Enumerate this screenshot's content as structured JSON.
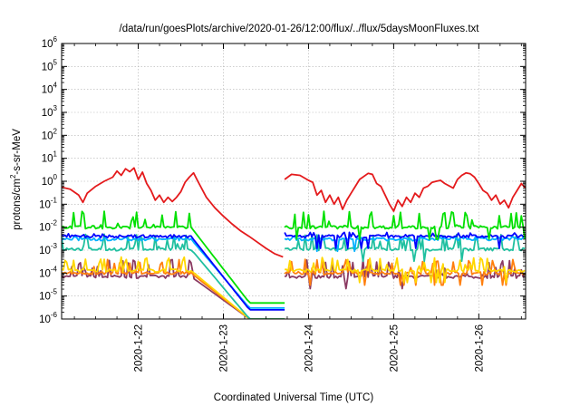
{
  "chart_data": {
    "type": "line",
    "title": "/data/run/goesPlots/archive/2020-01-26/12:00/flux/../flux/5daysMoonFluxes.txt",
    "xlabel": "Coordinated Universal Time (UTC)",
    "ylabel": {
      "prefix": "protons/cm",
      "superscript": "2",
      "suffix": "-s-sr-MeV"
    },
    "y_scale": "log",
    "ylim_exponents": [
      -6,
      6
    ],
    "y_tick_labels": [
      {
        "base": "10",
        "exp": "-6"
      },
      {
        "base": "10",
        "exp": "-5"
      },
      {
        "base": "10",
        "exp": "-4"
      },
      {
        "base": "10",
        "exp": "-3"
      },
      {
        "base": "10",
        "exp": "-2"
      },
      {
        "base": "10",
        "exp": "-1"
      },
      {
        "base": "10",
        "exp": "0"
      },
      {
        "base": "10",
        "exp": "1"
      },
      {
        "base": "10",
        "exp": "2"
      },
      {
        "base": "10",
        "exp": "3"
      },
      {
        "base": "10",
        "exp": "4"
      },
      {
        "base": "10",
        "exp": "5"
      },
      {
        "base": "10",
        "exp": "6"
      }
    ],
    "x_domain_days": [
      21.1,
      26.55
    ],
    "x_ticks": [
      {
        "label": "2020-1-22",
        "day": 22.0
      },
      {
        "label": "2020-1-23",
        "day": 23.0
      },
      {
        "label": "2020-1-24",
        "day": 24.0
      },
      {
        "label": "2020-1-25",
        "day": 25.0
      },
      {
        "label": "2020-1-26",
        "day": 26.0
      }
    ],
    "grid": true,
    "legend": "none",
    "gap_days": [
      22.62,
      23.72
    ],
    "series": [
      {
        "color": "#e41a1c",
        "key": "red",
        "segments": [
          [
            [
              21.1,
              0.55
            ],
            [
              21.2,
              0.45
            ],
            [
              21.3,
              0.25
            ],
            [
              21.35,
              0.12
            ],
            [
              21.4,
              0.3
            ],
            [
              21.5,
              0.6
            ],
            [
              21.6,
              1.0
            ],
            [
              21.7,
              1.5
            ],
            [
              21.75,
              2.8
            ],
            [
              21.8,
              1.8
            ],
            [
              21.85,
              3.5
            ],
            [
              21.9,
              2.6
            ],
            [
              21.95,
              3.8
            ],
            [
              22.0,
              1.2
            ],
            [
              22.05,
              2.5
            ],
            [
              22.1,
              0.8
            ],
            [
              22.15,
              0.4
            ],
            [
              22.2,
              0.15
            ],
            [
              22.25,
              0.25
            ],
            [
              22.3,
              0.12
            ],
            [
              22.35,
              0.2
            ],
            [
              22.4,
              0.13
            ],
            [
              22.45,
              0.2
            ],
            [
              22.5,
              0.35
            ],
            [
              22.55,
              0.9
            ],
            [
              22.6,
              1.5
            ],
            [
              22.65,
              2.3
            ],
            [
              22.7,
              1.0
            ],
            [
              22.8,
              0.2
            ],
            [
              22.9,
              0.07
            ],
            [
              23.0,
              0.03
            ],
            [
              23.1,
              0.014
            ],
            [
              23.2,
              0.007
            ],
            [
              23.3,
              0.004
            ],
            [
              23.4,
              0.0022
            ],
            [
              23.5,
              0.0012
            ],
            [
              23.6,
              0.0007
            ],
            [
              23.7,
              0.0005
            ]
          ],
          [
            [
              23.72,
              1.2
            ],
            [
              23.8,
              2.0
            ],
            [
              23.9,
              1.8
            ],
            [
              24.0,
              1.1
            ],
            [
              24.05,
              0.9
            ],
            [
              24.1,
              0.25
            ],
            [
              24.15,
              0.4
            ],
            [
              24.2,
              0.12
            ],
            [
              24.25,
              0.25
            ],
            [
              24.3,
              0.1
            ],
            [
              24.35,
              0.2
            ],
            [
              24.4,
              0.06
            ],
            [
              24.45,
              0.15
            ],
            [
              24.5,
              0.3
            ],
            [
              24.55,
              0.6
            ],
            [
              24.6,
              1.2
            ],
            [
              24.7,
              2.2
            ],
            [
              24.75,
              2.0
            ],
            [
              24.8,
              0.8
            ],
            [
              24.85,
              0.6
            ],
            [
              24.9,
              0.25
            ],
            [
              24.95,
              0.1
            ],
            [
              25.0,
              0.05
            ],
            [
              25.05,
              0.15
            ],
            [
              25.1,
              0.08
            ],
            [
              25.15,
              0.2
            ],
            [
              25.2,
              0.12
            ],
            [
              25.25,
              0.3
            ],
            [
              25.3,
              0.2
            ],
            [
              25.35,
              0.5
            ],
            [
              25.4,
              0.6
            ],
            [
              25.45,
              0.9
            ],
            [
              25.5,
              1.0
            ],
            [
              25.55,
              1.1
            ],
            [
              25.6,
              0.8
            ],
            [
              25.7,
              0.5
            ],
            [
              25.75,
              1.2
            ],
            [
              25.8,
              1.8
            ],
            [
              25.85,
              2.3
            ],
            [
              25.9,
              2.1
            ],
            [
              25.95,
              1.5
            ],
            [
              26.0,
              0.8
            ],
            [
              26.05,
              0.4
            ],
            [
              26.1,
              0.3
            ],
            [
              26.15,
              0.15
            ],
            [
              26.2,
              0.25
            ],
            [
              26.25,
              0.1
            ],
            [
              26.3,
              0.15
            ],
            [
              26.35,
              0.07
            ],
            [
              26.4,
              0.2
            ],
            [
              26.45,
              0.4
            ],
            [
              26.5,
              0.8
            ],
            [
              26.55,
              0.5
            ]
          ]
        ]
      },
      {
        "color": "#00e000",
        "key": "green",
        "base": 0.01,
        "spike": 0.05,
        "decay_end": 5e-06
      },
      {
        "color": "#0000ff",
        "key": "blue",
        "base": 0.004,
        "spike": 0.006,
        "decay_end": 2.5e-06
      },
      {
        "color": "#00b0ff",
        "key": "lightblue",
        "base": 0.003,
        "spike": 0.004,
        "decay_end": 3e-06
      },
      {
        "color": "#20c0a0",
        "key": "teal",
        "base": 0.0011,
        "spike": 0.005,
        "decay_end": 1e-06
      },
      {
        "color": "#ffd700",
        "key": "yellow",
        "base": 0.00013,
        "spike": 0.0005,
        "decay_end": 1e-06
      },
      {
        "color": "#ff7f0e",
        "key": "orange",
        "base": 0.0001,
        "spike": 0.0004,
        "decay_end": 1e-06
      },
      {
        "color": "#8b3a62",
        "key": "purple",
        "base": 7e-05,
        "spike": 0.0004,
        "decay_end": 1e-06
      }
    ]
  }
}
